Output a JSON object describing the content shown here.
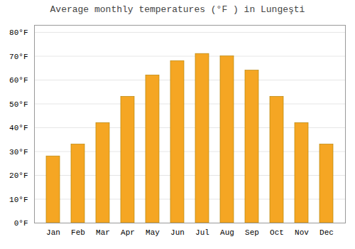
{
  "chart_data": {
    "type": "bar",
    "title": "Average monthly temperatures (°F ) in Lungeşti",
    "categories": [
      "Jan",
      "Feb",
      "Mar",
      "Apr",
      "May",
      "Jun",
      "Jul",
      "Aug",
      "Sep",
      "Oct",
      "Nov",
      "Dec"
    ],
    "values": [
      28,
      33,
      42,
      53,
      62,
      68,
      71,
      70,
      64,
      53,
      42,
      33
    ],
    "color": "#F5A623",
    "ylim": [
      0,
      83
    ],
    "yticks": [
      {
        "value": 0,
        "label": "0°F"
      },
      {
        "value": 10,
        "label": "10°F"
      },
      {
        "value": 20,
        "label": "20°F"
      },
      {
        "value": 30,
        "label": "30°F"
      },
      {
        "value": 40,
        "label": "40°F"
      },
      {
        "value": 50,
        "label": "50°F"
      },
      {
        "value": 60,
        "label": "60°F"
      },
      {
        "value": 70,
        "label": "70°F"
      },
      {
        "value": 80,
        "label": "80°F"
      }
    ],
    "grid": true
  }
}
